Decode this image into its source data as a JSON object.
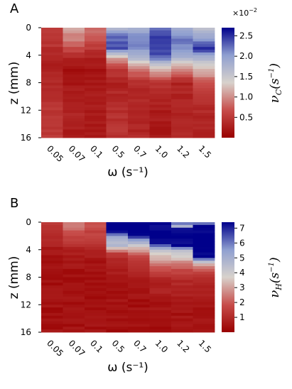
{
  "chart_data": [
    {
      "panel": "A",
      "type": "heatmap",
      "xlabel": "ω (s⁻¹)",
      "ylabel": "z (mm)",
      "x_tick_labels": [
        "0.05",
        "0.07",
        "0.1",
        "0.5",
        "0.7",
        "1.0",
        "1.2",
        "1.5"
      ],
      "y_ticks": [
        0,
        4,
        8,
        12,
        16
      ],
      "ylim": [
        0,
        16
      ],
      "colorbar": {
        "label": "νC(s⁻¹)",
        "label_main": "ν",
        "label_sub": "C",
        "label_tail": "(s",
        "label_sup": "−1",
        "label_close": ")",
        "scale_note": "×10⁻²",
        "scale_note_base": "×10",
        "scale_note_exp": "−2",
        "ticks": [
          0.5,
          1.0,
          1.5,
          2.0,
          2.5
        ],
        "tick_labels": [
          "0.5",
          "1.0",
          "1.5",
          "2.0",
          "2.5"
        ],
        "vmin": 0.0,
        "vmax": 2.7,
        "colormap": [
          "#990000",
          "#c74d4a",
          "#d8d2cc",
          "#8f9fd0",
          "#00008b"
        ]
      },
      "column_profiles": [
        {
          "x": "0.05",
          "z": [
            0,
            2,
            4,
            6,
            8,
            12,
            16
          ],
          "v": [
            0.6,
            0.5,
            0.3,
            0.25,
            0.35,
            0.45,
            0.5
          ]
        },
        {
          "x": "0.07",
          "z": [
            0,
            2,
            4,
            6,
            8,
            12,
            16
          ],
          "v": [
            1.1,
            0.9,
            0.4,
            0.15,
            0.2,
            0.3,
            0.25
          ]
        },
        {
          "x": "0.1",
          "z": [
            0,
            2,
            4,
            6,
            8,
            12,
            16
          ],
          "v": [
            0.9,
            0.7,
            0.3,
            0.15,
            0.2,
            0.25,
            0.25
          ]
        },
        {
          "x": "0.5",
          "z": [
            0,
            1,
            3,
            4.5,
            6,
            8,
            12,
            16
          ],
          "v": [
            1.6,
            2.2,
            2.4,
            1.0,
            0.5,
            0.3,
            0.4,
            0.45
          ]
        },
        {
          "x": "0.7",
          "z": [
            0,
            2,
            4,
            6,
            8,
            12,
            16
          ],
          "v": [
            1.8,
            2.2,
            1.9,
            0.9,
            0.4,
            0.3,
            0.35
          ]
        },
        {
          "x": "1.0",
          "z": [
            0,
            2,
            4,
            6,
            8,
            12,
            16
          ],
          "v": [
            2.2,
            2.5,
            2.4,
            1.2,
            0.5,
            0.25,
            0.2
          ]
        },
        {
          "x": "1.2",
          "z": [
            0,
            2,
            4,
            6,
            8,
            12,
            16
          ],
          "v": [
            1.8,
            2.2,
            1.9,
            1.0,
            0.3,
            0.35,
            0.3
          ]
        },
        {
          "x": "1.5",
          "z": [
            0,
            2,
            3,
            4,
            6,
            8,
            12,
            16
          ],
          "v": [
            1.6,
            2.1,
            2.6,
            1.9,
            1.3,
            0.7,
            0.35,
            0.25
          ]
        }
      ]
    },
    {
      "panel": "B",
      "type": "heatmap",
      "xlabel": "ω (s⁻¹)",
      "ylabel": "z (mm)",
      "x_tick_labels": [
        "0.05",
        "0.07",
        "0.1",
        "0.5",
        "0.7",
        "1.0",
        "1.2",
        "1.5"
      ],
      "y_ticks": [
        0,
        4,
        8,
        12,
        16
      ],
      "ylim": [
        0,
        16
      ],
      "colorbar": {
        "label": "νH(s⁻¹)",
        "label_main": "ν",
        "label_sub": "H",
        "label_tail": "(s",
        "label_sup": "−1",
        "label_close": ")",
        "scale_note": "",
        "ticks": [
          1,
          2,
          3,
          4,
          5,
          6,
          7
        ],
        "tick_labels": [
          "1",
          "2",
          "3",
          "4",
          "5",
          "6",
          "7"
        ],
        "vmin": 0.0,
        "vmax": 7.4,
        "colormap": [
          "#990000",
          "#c74d4a",
          "#d8d2cc",
          "#8f9fd0",
          "#00008b"
        ]
      },
      "column_profiles": [
        {
          "x": "0.05",
          "z": [
            0,
            2,
            4,
            6,
            8,
            12,
            16
          ],
          "v": [
            1.5,
            1.0,
            0.6,
            0.4,
            0.4,
            0.4,
            0.4
          ]
        },
        {
          "x": "0.07",
          "z": [
            0,
            2,
            4,
            6,
            8,
            12,
            16
          ],
          "v": [
            2.5,
            1.8,
            0.8,
            0.5,
            0.4,
            0.4,
            0.4
          ]
        },
        {
          "x": "0.1",
          "z": [
            0,
            2,
            4,
            6,
            8,
            12,
            16
          ],
          "v": [
            2.0,
            1.5,
            0.8,
            0.5,
            0.4,
            0.4,
            0.4
          ]
        },
        {
          "x": "0.5",
          "z": [
            0,
            0.5,
            1.5,
            2,
            3.5,
            4.5,
            6,
            8,
            12,
            16
          ],
          "v": [
            7.4,
            7.4,
            7.4,
            5.0,
            4.5,
            1.5,
            0.8,
            0.5,
            0.4,
            0.4
          ]
        },
        {
          "x": "0.7",
          "z": [
            0,
            2,
            2.5,
            3.5,
            5,
            8,
            12,
            16
          ],
          "v": [
            7.4,
            7.4,
            5.5,
            4.0,
            1.5,
            0.6,
            0.4,
            0.4
          ]
        },
        {
          "x": "1.0",
          "z": [
            0,
            3,
            4,
            6,
            8,
            12,
            16
          ],
          "v": [
            7.4,
            7.4,
            4.5,
            2.5,
            1.0,
            0.5,
            0.4
          ]
        },
        {
          "x": "1.2",
          "z": [
            0,
            0.5,
            1,
            3.5,
            4,
            5,
            6,
            8,
            12,
            16
          ],
          "v": [
            7.4,
            4.0,
            7.4,
            7.4,
            4.5,
            4.0,
            2.5,
            1.0,
            0.5,
            0.4
          ]
        },
        {
          "x": "1.5",
          "z": [
            0,
            0.5,
            1,
            5,
            6,
            7,
            8,
            12,
            16
          ],
          "v": [
            5.5,
            7.4,
            7.4,
            7.4,
            3.5,
            2.0,
            1.0,
            0.5,
            0.4
          ]
        }
      ]
    }
  ]
}
